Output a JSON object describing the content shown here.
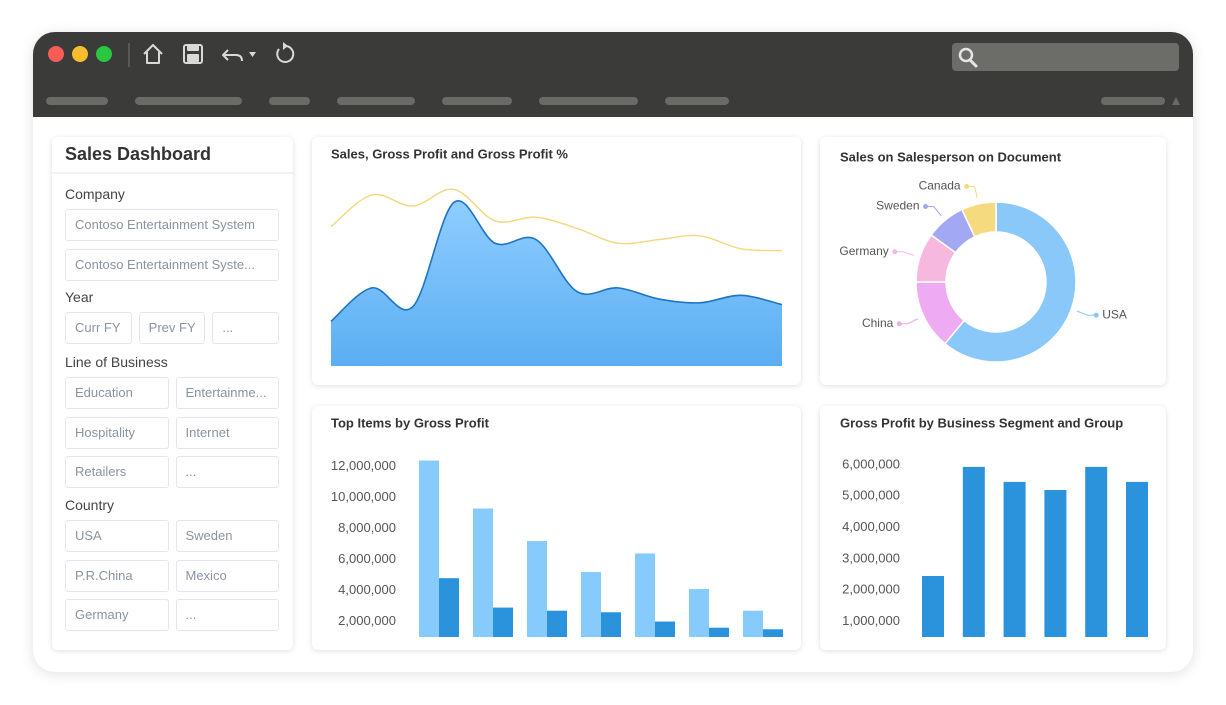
{
  "sidebar": {
    "title": "Sales Dashboard",
    "filters": [
      {
        "label": "Company",
        "options": [
          "Contoso Entertainment System",
          "Contoso Entertainment Syste..."
        ]
      },
      {
        "label": "Year",
        "options": [
          "Curr FY",
          "Prev FY",
          "..."
        ]
      },
      {
        "label": "Line of Business",
        "options": [
          "Education",
          "Entertainme...",
          "Hospitality",
          "Internet",
          "Retailers",
          "..."
        ]
      },
      {
        "label": "Country",
        "options": [
          "USA",
          "Sweden",
          "P.R.China",
          "Mexico",
          "Germany",
          "..."
        ]
      }
    ]
  },
  "chart_data": [
    {
      "type": "area-line",
      "title": "Sales, Gross Profit and Gross Profit %",
      "categories": [
        null,
        null,
        null,
        null,
        null,
        null,
        null,
        null,
        null,
        null,
        null,
        null
      ],
      "ylim": [
        0,
        100
      ],
      "series": [
        {
          "color": "#5fb3f4",
          "values": [
            24,
            42,
            32,
            88,
            66,
            68,
            40,
            42,
            36,
            34,
            38,
            33
          ]
        },
        {
          "color": "#f3d77a",
          "values": [
            75,
            92,
            86,
            95,
            78,
            80,
            74,
            66,
            68,
            70,
            63,
            62
          ]
        }
      ]
    },
    {
      "type": "donut",
      "title": "Sales on Salesperson on Document",
      "categories": [
        "USA",
        "China",
        "Germany",
        "Sweden",
        "Canada"
      ],
      "values": [
        61,
        14,
        10,
        8,
        7
      ],
      "colors": [
        "#8ac8fa",
        "#eeaaf2",
        "#f6b8df",
        "#a3a8f5",
        "#f6da7f"
      ]
    },
    {
      "type": "bar",
      "title": "Top Items by Gross Profit",
      "categories": [
        null,
        null,
        null,
        null,
        null,
        null,
        null
      ],
      "ylim": [
        1000000,
        12500000
      ],
      "yticks": [
        {
          "value": 2000000,
          "label": "2,000,000"
        },
        {
          "value": 4000000,
          "label": "4,000,000"
        },
        {
          "value": 6000000,
          "label": "6,000,000"
        },
        {
          "value": 8000000,
          "label": "8,000,000"
        },
        {
          "value": 10000000,
          "label": "10,000,000"
        },
        {
          "value": 12000000,
          "label": "12,000,000"
        }
      ],
      "series": [
        {
          "color": "#86cbfb",
          "values": [
            12400000,
            9300000,
            7200000,
            5200000,
            6400000,
            4100000,
            2700000
          ]
        },
        {
          "color": "#2a93db",
          "values": [
            4800000,
            2900000,
            2700000,
            2600000,
            2000000,
            1600000,
            1500000
          ]
        }
      ]
    },
    {
      "type": "bar",
      "title": "Gross Profit by Business Segment and Group",
      "categories": [
        null,
        null,
        null,
        null,
        null,
        null
      ],
      "ylim": [
        500000,
        6000000
      ],
      "yticks": [
        {
          "value": 1000000,
          "label": "1,000,000"
        },
        {
          "value": 2000000,
          "label": "2,000,000"
        },
        {
          "value": 3000000,
          "label": "3,000,000"
        },
        {
          "value": 4000000,
          "label": "4,000,000"
        },
        {
          "value": 5000000,
          "label": "5,000,000"
        },
        {
          "value": 6000000,
          "label": "6,000,000"
        }
      ],
      "series": [
        {
          "color": "#2a93db",
          "values": [
            2450000,
            5940000,
            5460000,
            5200000,
            5940000,
            5460000
          ]
        }
      ]
    }
  ]
}
